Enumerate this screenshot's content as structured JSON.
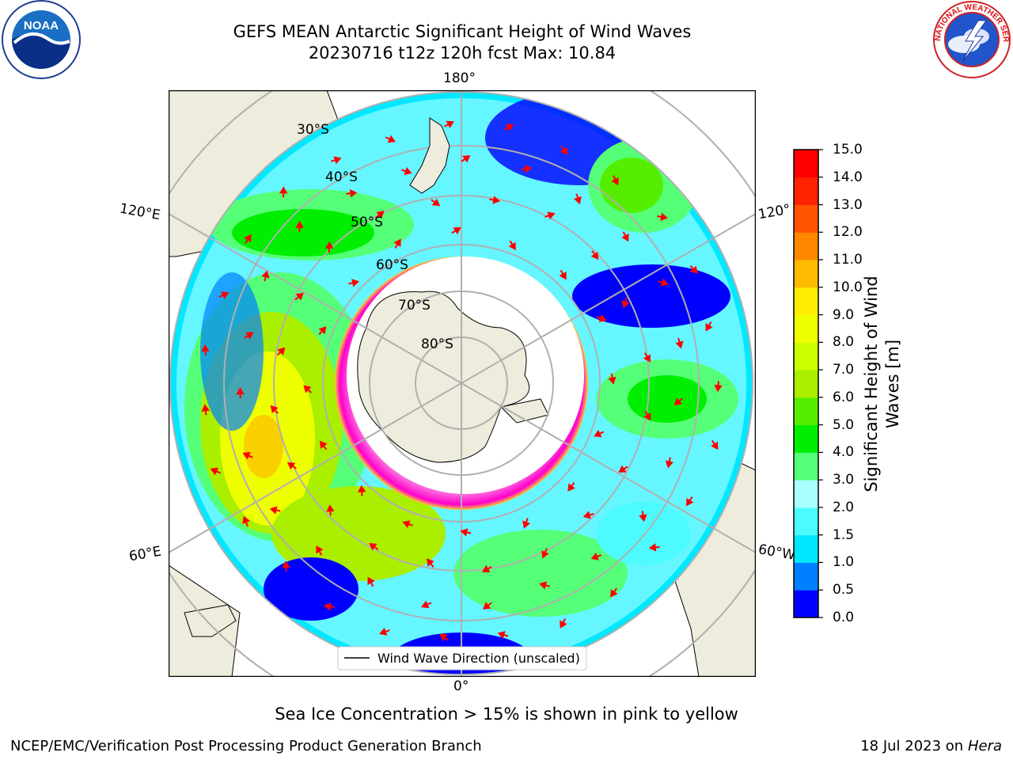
{
  "header": {
    "title_line1": "GEFS MEAN Antarctic Significant Height of Wind Waves",
    "title_line2": "20230716 t12z 120h fcst   Max: 10.84"
  },
  "logos": {
    "left": {
      "icon": "noaa-logo-icon",
      "text": "NOAA"
    },
    "right": {
      "icon": "national-weather-service-logo-icon",
      "text": "NATIONAL WEATHER SERVICE"
    }
  },
  "map": {
    "projection": "south-polar-stereographic",
    "longitude_labels": {
      "top": "180°",
      "bottom": "0°",
      "upper_left": "120°E",
      "lower_left": "60°E",
      "upper_right": "120°",
      "lower_right": "60°W"
    },
    "latitude_labels": [
      "30°S",
      "40°S",
      "50°S",
      "60°S",
      "70°S",
      "80°S"
    ],
    "legend_label": "Wind Wave Direction (unscaled)",
    "arrow_color": "#ff0000",
    "land_color": "#eeecdc",
    "ice_edge_colors": [
      "#ff00ff",
      "#ff66cc",
      "#ffcc33"
    ]
  },
  "colorbar": {
    "title_line1": "Significant Height of Wind",
    "title_line2": "Waves [m]",
    "ticks": [
      "0.0",
      "0.5",
      "1.0",
      "1.5",
      "2.0",
      "3.0",
      "4.0",
      "5.0",
      "6.0",
      "7.0",
      "8.0",
      "9.0",
      "10.0",
      "11.0",
      "12.0",
      "13.0",
      "14.0",
      "15.0"
    ],
    "colors": [
      "#0000ff",
      "#0080ff",
      "#00e8ff",
      "#4dfbff",
      "#aaffff",
      "#55ff77",
      "#00ee00",
      "#55ee00",
      "#aaee00",
      "#ccff00",
      "#eeff00",
      "#ffee00",
      "#ffbb00",
      "#ff8800",
      "#ff5500",
      "#ff2200",
      "#ff0000"
    ]
  },
  "footer": {
    "note": "Sea Ice Concentration > 15% is shown in pink to yellow",
    "left": "NCEP/EMC/Verification Post Processing Product Generation Branch",
    "date": "18 Jul 2023 on",
    "machine": "Hera"
  }
}
